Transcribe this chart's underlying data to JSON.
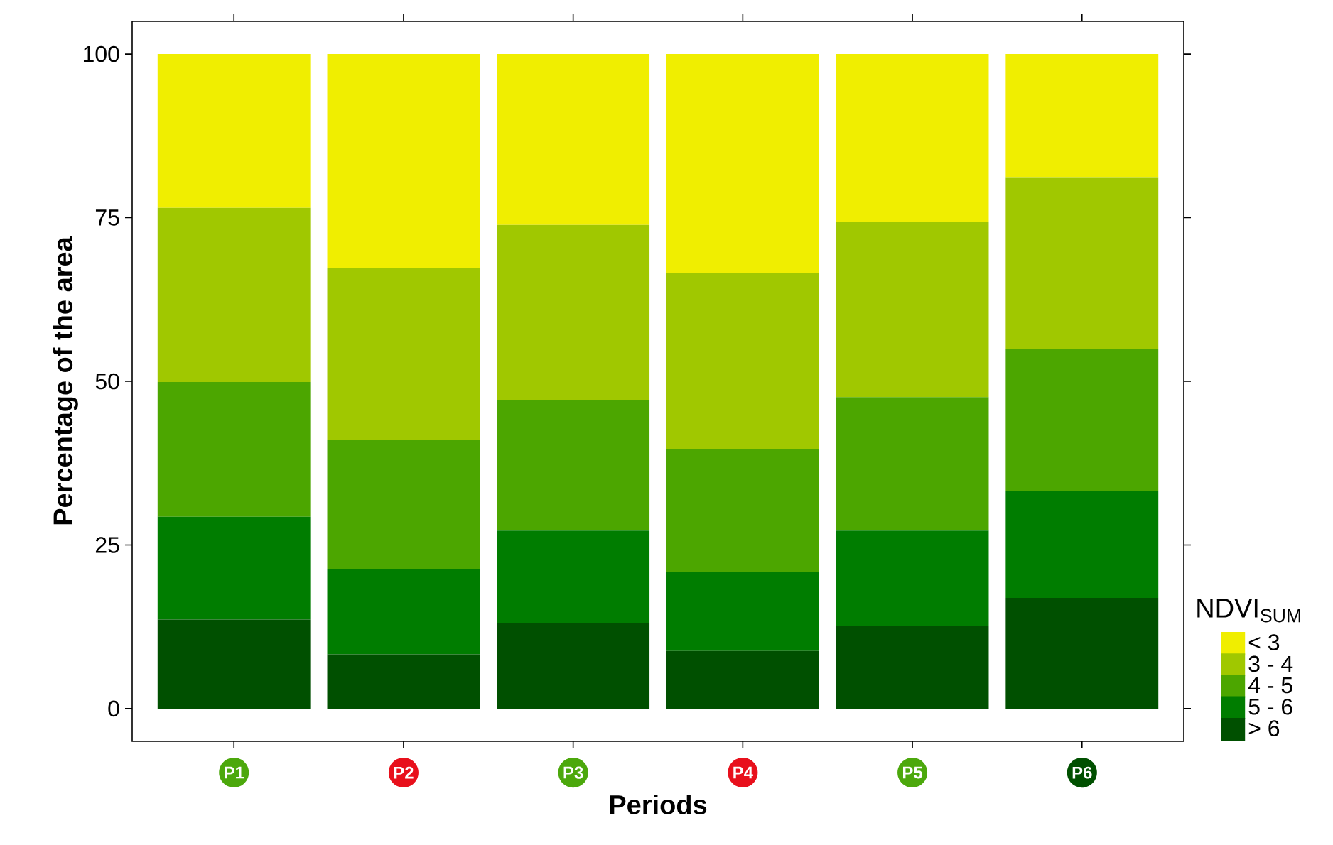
{
  "chart_data": {
    "type": "bar",
    "stacked": true,
    "xlabel": "Periods",
    "ylabel": "Percentage of the area",
    "legend_title": "NDVI$_{SUM}$",
    "categories": [
      "P1",
      "P2",
      "P3",
      "P4",
      "P5",
      "P6"
    ],
    "ylim": [
      -5,
      105
    ],
    "yticks": [
      0,
      25,
      50,
      75,
      100
    ],
    "grid": false,
    "legend": "bottom right",
    "series": [
      {
        "name": "> 6",
        "color": "#005000",
        "values": [
          13.6,
          8.3,
          13.0,
          8.8,
          12.6,
          16.9
        ]
      },
      {
        "name": "5 - 6",
        "color": "#007d00",
        "values": [
          15.7,
          13.0,
          14.2,
          12.1,
          14.6,
          16.3
        ]
      },
      {
        "name": "4 - 5",
        "color": "#4ca600",
        "values": [
          20.6,
          19.7,
          19.9,
          18.8,
          20.4,
          21.8
        ]
      },
      {
        "name": "3 - 4",
        "color": "#a0c800",
        "values": [
          26.6,
          26.3,
          26.8,
          26.8,
          26.8,
          26.2
        ]
      },
      {
        "name": "< 3",
        "color": "#f0ee00",
        "values": [
          23.5,
          32.7,
          26.1,
          33.5,
          25.6,
          18.8
        ]
      }
    ]
  }
}
